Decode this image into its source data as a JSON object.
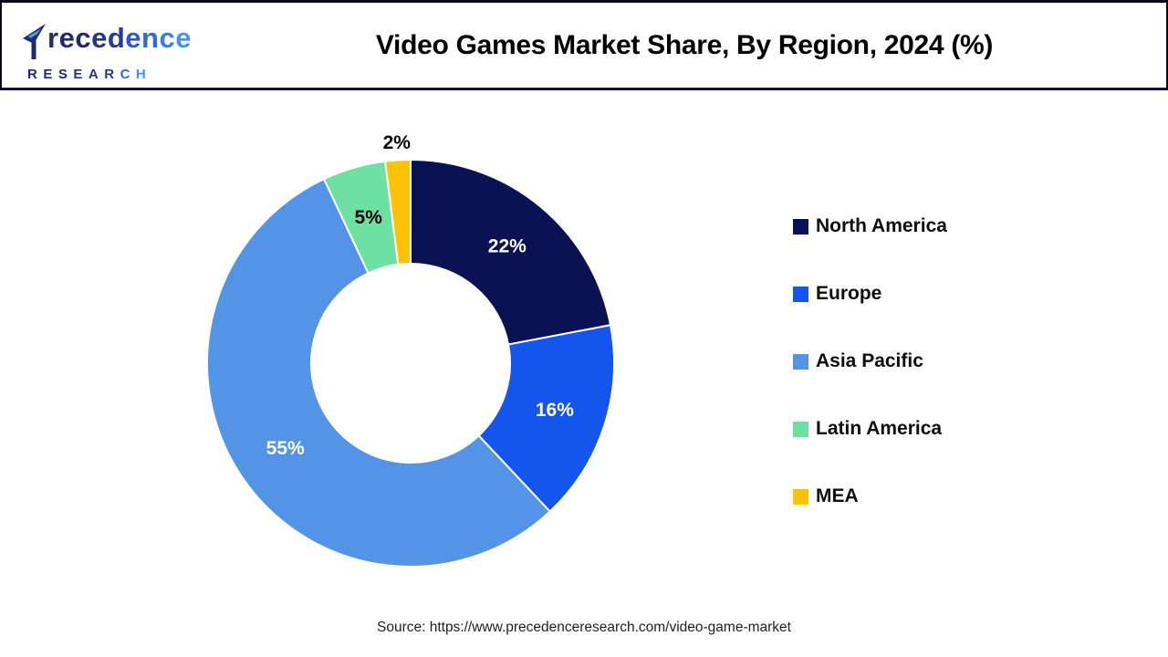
{
  "header": {
    "title": "Video Games Market Share, By Region, 2024 (%)",
    "logo": {
      "line1_letters": [
        {
          "ch": "r",
          "color": "#232c6a"
        },
        {
          "ch": "e",
          "color": "#232c6a"
        },
        {
          "ch": "c",
          "color": "#232c6a"
        },
        {
          "ch": "e",
          "color": "#28347e"
        },
        {
          "ch": "d",
          "color": "#2b3a92"
        },
        {
          "ch": "e",
          "color": "#2e59c4"
        },
        {
          "ch": "n",
          "color": "#2f6ad8"
        },
        {
          "ch": "c",
          "color": "#3a7ee6"
        },
        {
          "ch": "e",
          "color": "#4a90ee"
        }
      ],
      "line2_letters": [
        {
          "ch": "R",
          "color": "#232c6a"
        },
        {
          "ch": "E",
          "color": "#232c6a"
        },
        {
          "ch": "S",
          "color": "#232c6a"
        },
        {
          "ch": "E",
          "color": "#28347e"
        },
        {
          "ch": "A",
          "color": "#28347e"
        },
        {
          "ch": "R",
          "color": "#2b3a92"
        },
        {
          "ch": "C",
          "color": "#2f6ad8"
        },
        {
          "ch": "H",
          "color": "#4a90ee"
        }
      ],
      "leaf_colors": {
        "flag": "#232c6a",
        "leaf": "#4aa0ee"
      }
    }
  },
  "chart_data": {
    "type": "pie",
    "subtype": "donut",
    "title": "Video Games Market Share, By Region, 2024 (%)",
    "unit": "%",
    "start_angle_deg": 0,
    "direction": "clockwise",
    "hole_ratio": 0.49,
    "legend_position": "right",
    "categories": [
      "North America",
      "Europe",
      "Asia Pacific",
      "Latin America",
      "MEA"
    ],
    "values": [
      22,
      16,
      55,
      5,
      2
    ],
    "slices": [
      {
        "label": "North America",
        "value": 22,
        "display": "22%",
        "color": "#0b1254",
        "label_color": "#ffffff",
        "label_position": "inside"
      },
      {
        "label": "Europe",
        "value": 16,
        "display": "16%",
        "color": "#1455ee",
        "label_color": "#ffffff",
        "label_position": "inside"
      },
      {
        "label": "Asia Pacific",
        "value": 55,
        "display": "55%",
        "color": "#5494e6",
        "label_color": "#ffffff",
        "label_position": "inside"
      },
      {
        "label": "Latin America",
        "value": 5,
        "display": "5%",
        "color": "#6ee0a1",
        "label_color": "#000000",
        "label_position": "inside"
      },
      {
        "label": "MEA",
        "value": 2,
        "display": "2%",
        "color": "#fdc105",
        "label_color": "#000000",
        "label_position": "outside"
      }
    ]
  },
  "source": {
    "text": "Source: https://www.precedenceresearch.com/video-game-market"
  }
}
